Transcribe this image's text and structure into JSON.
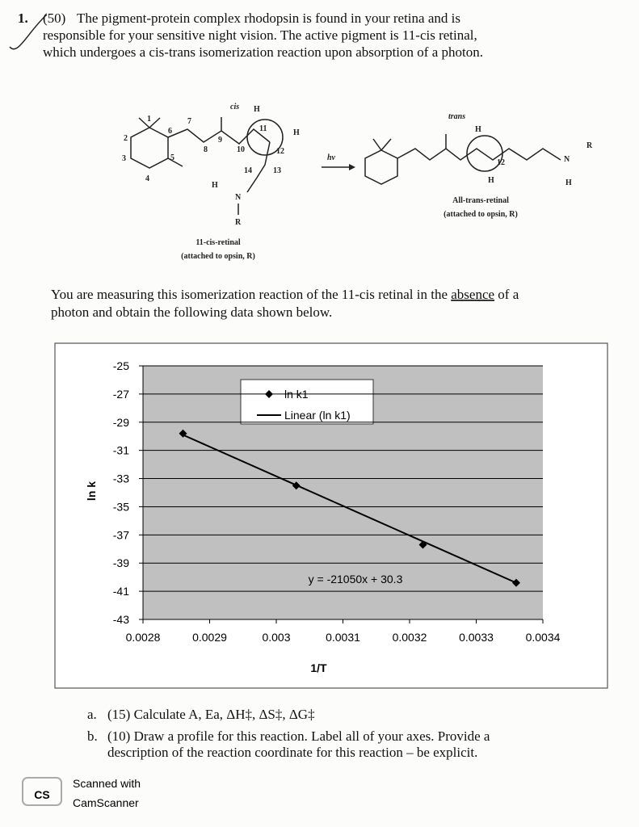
{
  "question": {
    "number": "1.",
    "points": "(50)",
    "lines": [
      "The pigment-protein complex rhodopsin is found in your retina and is",
      "responsible for your sensitive night vision. The active pigment is 11-cis retinal,",
      "which undergoes a cis-trans isomerization reaction upon absorption of a photon."
    ]
  },
  "scheme": {
    "cis_label": "cis",
    "arrow_label": "hν",
    "trans_label": "trans",
    "left_name": "11-cis-retinal",
    "left_note": "(attached to opsin, R)",
    "right_name": "All-trans-retinal",
    "right_note": "(attached to opsin, R)",
    "left_atoms": [
      "1",
      "2",
      "3",
      "4",
      "5",
      "6",
      "7",
      "8",
      "9",
      "10",
      "11",
      "12",
      "13",
      "14",
      "H",
      "H",
      "H",
      "N",
      "R"
    ],
    "right_atoms": [
      "H",
      "12",
      "H",
      "N",
      "R",
      "H"
    ]
  },
  "intro": {
    "before": "You are measuring this isomerization reaction of the 11-cis retinal in the ",
    "emphasis": "absence",
    "after": " of a",
    "line2": "photon and obtain the following data shown below."
  },
  "chart_data": {
    "type": "scatter",
    "xlabel": "1/T",
    "ylabel": "ln k",
    "series": [
      {
        "name": "ln k1",
        "style": "marker",
        "color": "#000000",
        "x": [
          0.00286,
          0.00303,
          0.00322,
          0.00336
        ],
        "values": [
          -29.8,
          -33.5,
          -37.7,
          -40.4
        ]
      },
      {
        "name": "Linear (ln k1)",
        "style": "line",
        "color": "#000000",
        "x": [
          0.00286,
          0.00336
        ],
        "values": [
          -29.9,
          -40.4
        ]
      }
    ],
    "annotation": "y = -21050x + 30.3",
    "xlim": [
      0.0028,
      0.0034
    ],
    "xticks": [
      0.0028,
      0.0029,
      0.003,
      0.0031,
      0.0032,
      0.0033,
      0.0034
    ],
    "ylim": [
      -43,
      -25
    ],
    "yticks": [
      -25,
      -27,
      -29,
      -31,
      -33,
      -35,
      -37,
      -39,
      -41,
      -43
    ],
    "grid": true,
    "legend": "top"
  },
  "parts": [
    {
      "label": "a.",
      "lines": [
        "(15) Calculate A, Ea, ΔH‡, ΔS‡, ΔG‡"
      ]
    },
    {
      "label": "b.",
      "lines": [
        "(10) Draw a profile for this reaction. Label all of your axes. Provide a",
        "description of the reaction coordinate for this reaction – be explicit."
      ]
    }
  ],
  "watermark": {
    "badge": "CS",
    "line1": "Scanned with",
    "line2": "CamScanner"
  }
}
